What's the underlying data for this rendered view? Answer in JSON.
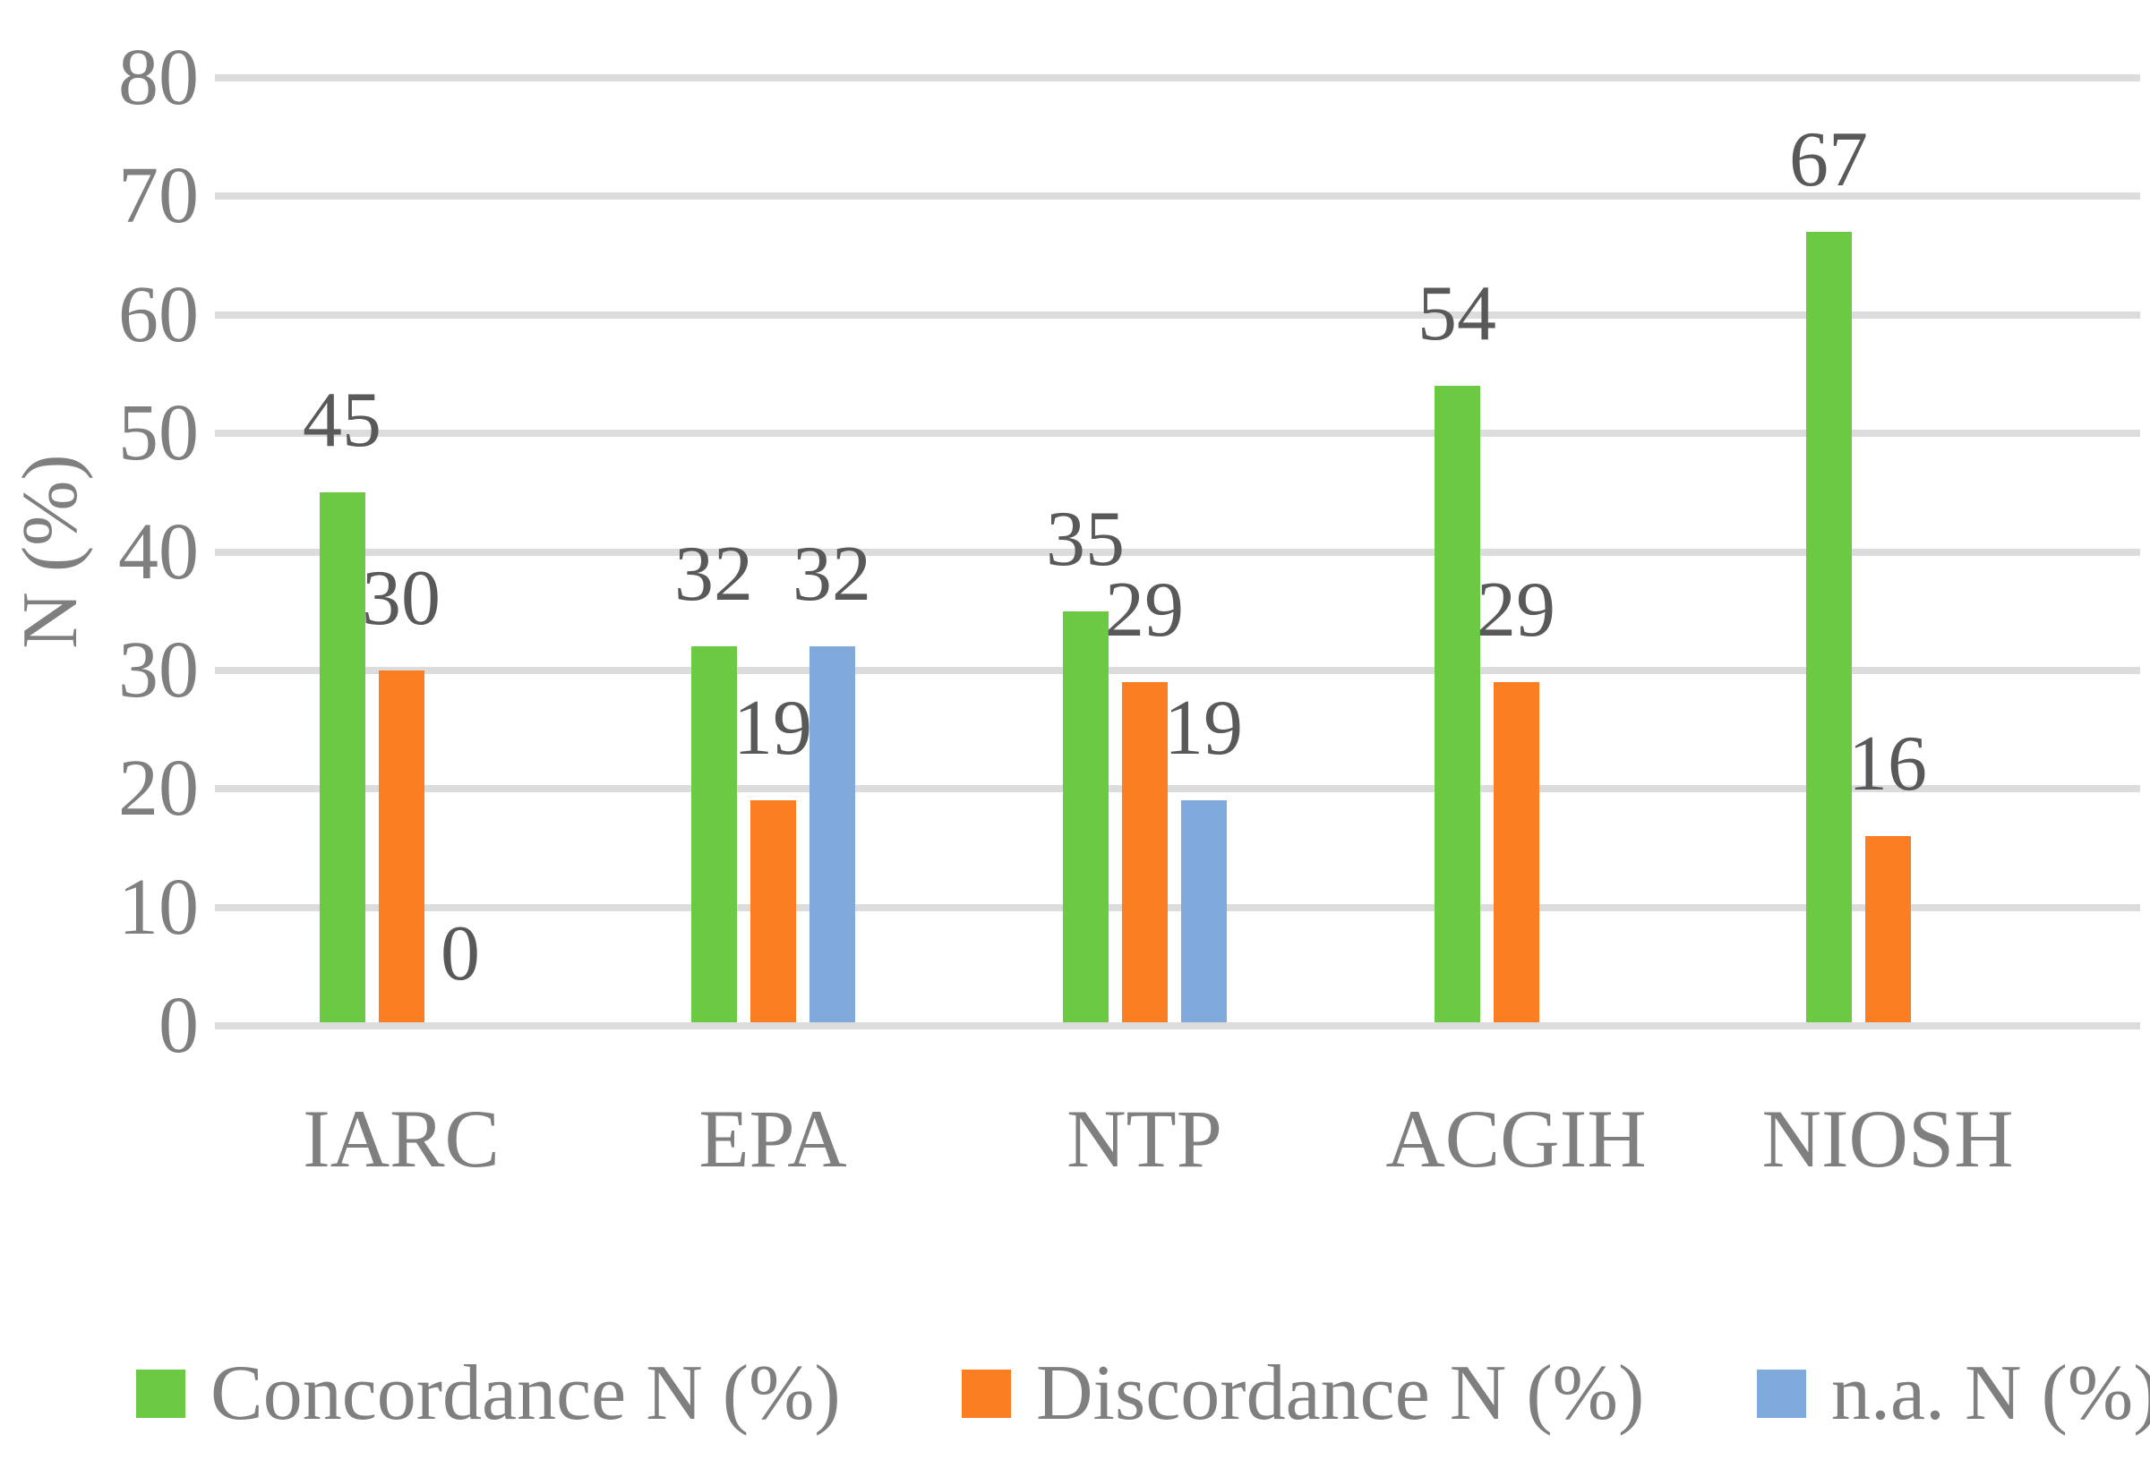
{
  "y_axis": {
    "title": "N (%)",
    "ticks": [
      0,
      10,
      20,
      30,
      40,
      50,
      60,
      70,
      80
    ]
  },
  "legend": {
    "items": [
      {
        "label": "Concordance N (%)",
        "color": "#6bc943"
      },
      {
        "label": "Discordance N (%)",
        "color": "#fb7e23"
      },
      {
        "label": "n.a. N (%)",
        "color": "#81aadc"
      }
    ]
  },
  "colors": {
    "gridline": "#dcdcdc",
    "axis_text": "#7f7f7f",
    "data_label_text": "#595959"
  },
  "chart_data": {
    "type": "bar",
    "categories": [
      "IARC",
      "EPA",
      "NTP",
      "ACGIH",
      "NIOSH"
    ],
    "series": [
      {
        "name": "Concordance N (%)",
        "color": "#6bc943",
        "values": [
          45,
          32,
          35,
          54,
          67
        ]
      },
      {
        "name": "Discordance N (%)",
        "color": "#fb7e23",
        "values": [
          30,
          19,
          29,
          29,
          16
        ]
      },
      {
        "name": "n.a. N (%)",
        "color": "#81aadc",
        "values": [
          0,
          32,
          19,
          null,
          null
        ]
      }
    ],
    "data_labels": "outside-end",
    "title": "",
    "xlabel": "",
    "ylabel": "N (%)",
    "ylim": [
      0,
      80
    ],
    "ytick_step": 10,
    "grid": true,
    "legend_position": "bottom"
  }
}
